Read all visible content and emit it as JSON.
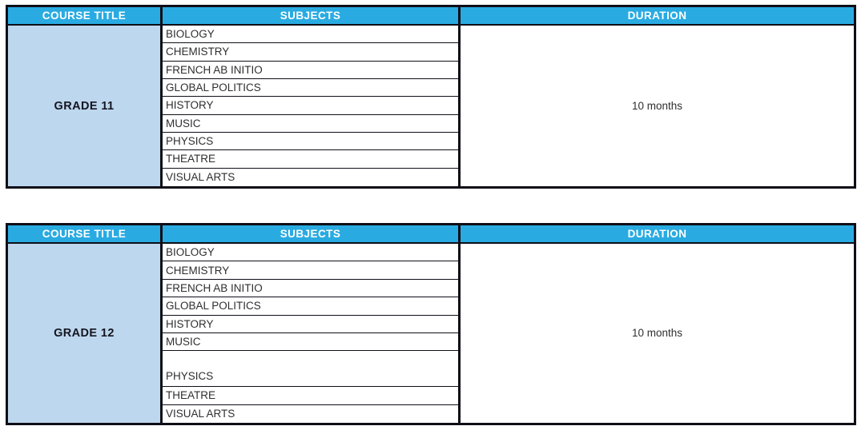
{
  "colors": {
    "header_bg": "#29ABE2",
    "header_text": "#FFFFFF",
    "course_cell_bg": "#BDD7EE",
    "border": "#0E0E17",
    "body_text": "#2F2F2F",
    "course_text": "#15151F"
  },
  "tables": [
    {
      "headers": [
        "COURSE TITLE",
        "SUBJECTS",
        "DURATION"
      ],
      "course_title": "GRADE 11",
      "subjects": [
        "BIOLOGY",
        "CHEMISTRY",
        "FRENCH AB INITIO",
        "GLOBAL POLITICS",
        "HISTORY",
        "MUSIC",
        "PHYSICS",
        "THEATRE",
        "VISUAL ARTS"
      ],
      "duration": "10 months"
    },
    {
      "headers": [
        "COURSE TITLE",
        "SUBJECTS",
        "DURATION"
      ],
      "course_title": "GRADE 12",
      "subjects": [
        "BIOLOGY",
        "CHEMISTRY",
        "FRENCH AB INITIO",
        "GLOBAL POLITICS",
        "HISTORY",
        "MUSIC",
        "PHYSICS",
        "THEATRE",
        "VISUAL ARTS"
      ],
      "duration": "10 months"
    }
  ]
}
